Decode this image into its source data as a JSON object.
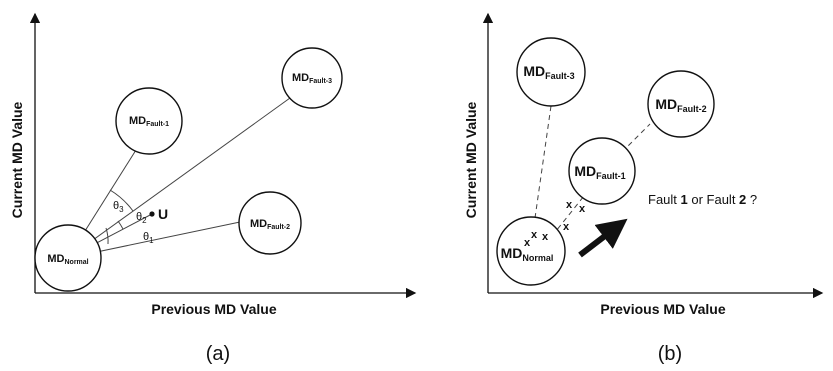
{
  "panel_a": {
    "ylabel": "Current MD Value",
    "xlabel": "Previous MD Value",
    "caption": "(a)",
    "nodes": {
      "normal": {
        "main": "MD",
        "sub": "Normal"
      },
      "fault1": {
        "main": "MD",
        "sub": "Fault-1"
      },
      "fault2": {
        "main": "MD",
        "sub": "Fault-2"
      },
      "fault3": {
        "main": "MD",
        "sub": "Fault-3"
      }
    },
    "point_label": "U",
    "angles": {
      "theta1": {
        "main": "θ",
        "sub": "1"
      },
      "theta2": {
        "main": "θ",
        "sub": "2"
      },
      "theta3": {
        "main": "θ",
        "sub": "3"
      }
    }
  },
  "panel_b": {
    "ylabel": "Current MD Value",
    "xlabel": "Previous MD Value",
    "caption": "(b)",
    "nodes": {
      "normal": {
        "main": "MD",
        "sub": "Normal"
      },
      "fault1": {
        "main": "MD",
        "sub": "Fault-1"
      },
      "fault2": {
        "main": "MD",
        "sub": "Fault-2"
      },
      "fault3": {
        "main": "MD",
        "sub": "Fault-3"
      }
    },
    "marker": "x",
    "question": {
      "pre": "Fault ",
      "n1": "1",
      "mid": " or Fault ",
      "n2": "2",
      "post": " ?"
    }
  }
}
